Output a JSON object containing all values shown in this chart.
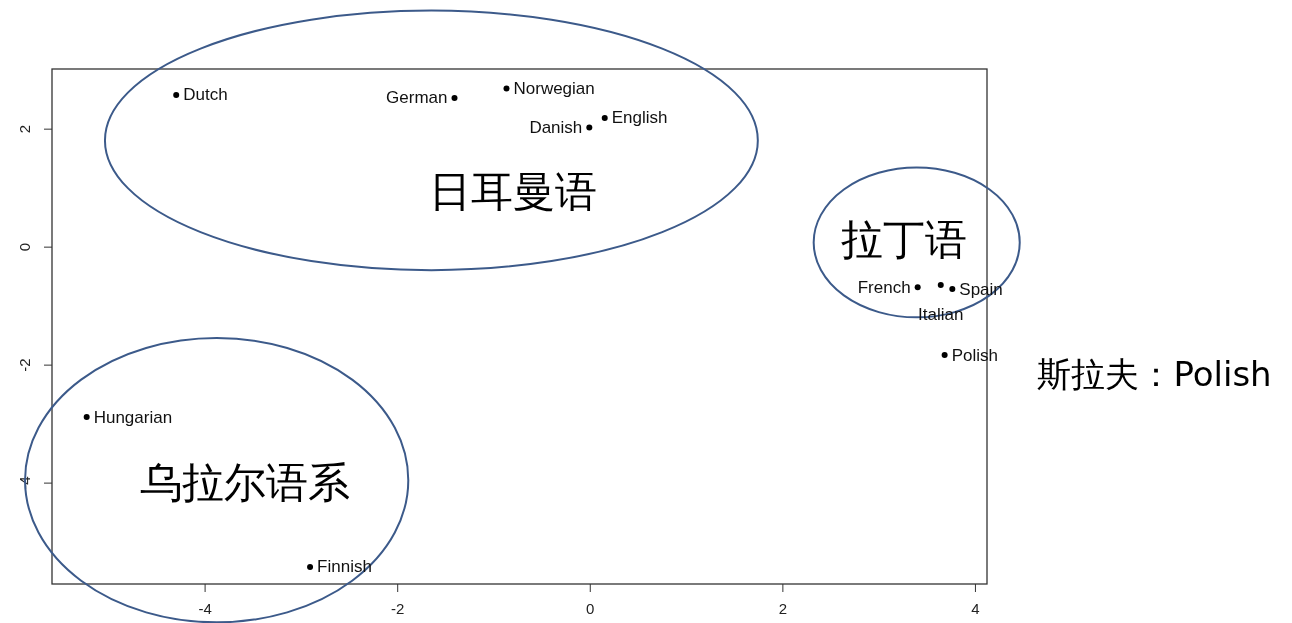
{
  "chart_data": {
    "type": "scatter",
    "x": [
      -4.3,
      -1.41,
      -0.87,
      0.15,
      -0.01,
      3.4,
      3.64,
      3.76,
      3.68,
      -5.23,
      -2.91
    ],
    "values": [
      2.58,
      2.53,
      2.69,
      2.19,
      2.03,
      -0.68,
      -0.64,
      -0.71,
      -1.83,
      -2.88,
      -5.42
    ],
    "value_labels": [
      "Dutch",
      "German",
      "Norwegian",
      "English",
      "Danish",
      "French",
      "Italian",
      "Spain",
      "Polish",
      "Hungarian",
      "Finnish"
    ],
    "marker": "circle",
    "xlim": [
      -5.59,
      4.12
    ],
    "ylim": [
      -5.71,
      3.02
    ],
    "xticks": [
      -4,
      -2,
      0,
      2,
      4
    ],
    "yticks": [
      -4,
      -2,
      0,
      2
    ],
    "grid": false,
    "annotations": [
      "日耳曼语",
      "拉丁语",
      "乌拉尔语系",
      "斯拉夫：Polish"
    ]
  }
}
